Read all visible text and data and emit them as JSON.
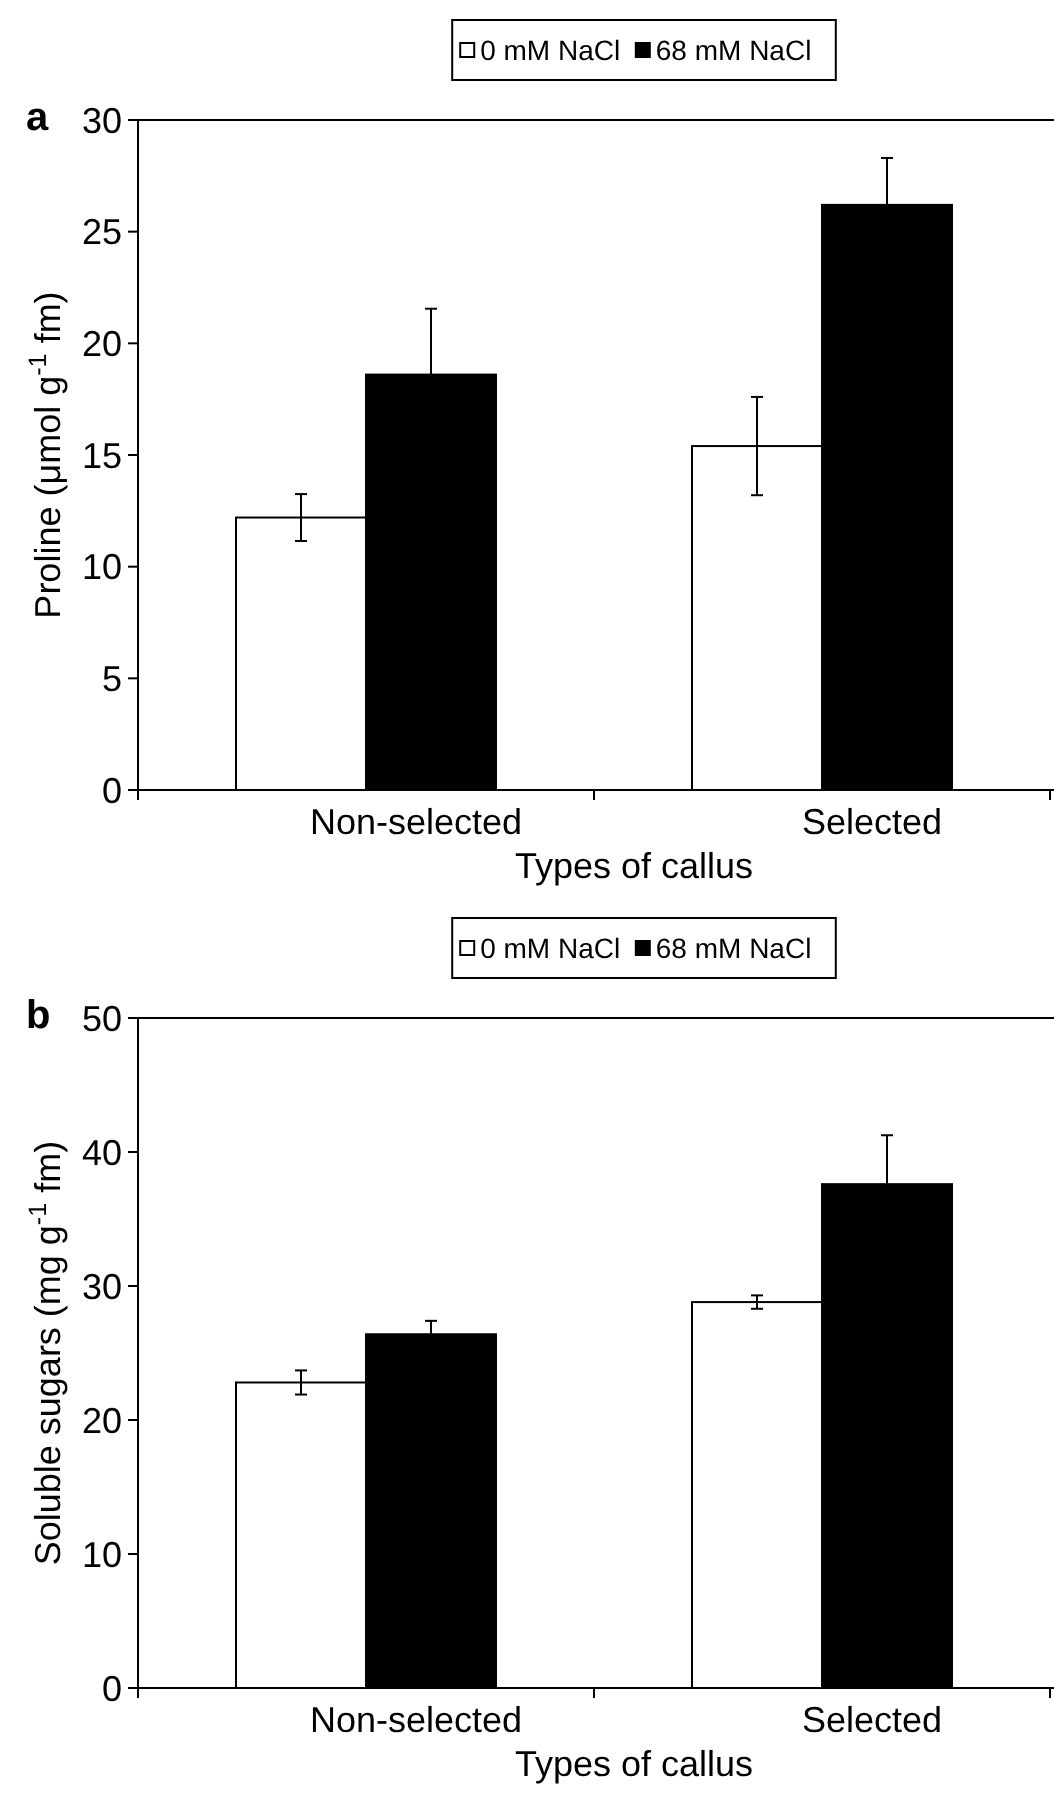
{
  "chart_data": [
    {
      "type": "bar",
      "title": "a",
      "xlabel": "Types of callus",
      "ylabel": "Proline (μmol g$^{-1}$ fm)",
      "categories": [
        "Non-selected",
        "Selected"
      ],
      "ylim": [
        0,
        30
      ],
      "yticks": [
        0,
        5,
        10,
        15,
        20,
        25,
        30
      ],
      "legend": "top",
      "grid": false,
      "series": [
        {
          "name": "0 mM NaCl",
          "color": "#ffffff",
          "values": [
            12.2,
            15.4
          ],
          "errors": [
            1.05,
            2.2
          ]
        },
        {
          "name": "68 mM NaCl",
          "color": "#000000",
          "values": [
            18.6,
            26.2
          ],
          "errors": [
            2.95,
            2.1
          ]
        }
      ]
    },
    {
      "type": "bar",
      "title": "b",
      "xlabel": "Types of callus",
      "ylabel": "Soluble sugars (mg g$^{-1}$ fm)",
      "categories": [
        "Non-selected",
        "Selected"
      ],
      "ylim": [
        0,
        50
      ],
      "yticks": [
        0,
        10,
        20,
        30,
        40,
        50
      ],
      "legend": "top",
      "grid": false,
      "series": [
        {
          "name": "0 mM NaCl",
          "color": "#ffffff",
          "values": [
            22.8,
            28.8
          ],
          "errors": [
            0.9,
            0.5
          ]
        },
        {
          "name": "68 mM NaCl",
          "color": "#000000",
          "values": [
            26.4,
            37.6
          ],
          "errors": [
            1.0,
            3.65
          ]
        }
      ]
    }
  ]
}
